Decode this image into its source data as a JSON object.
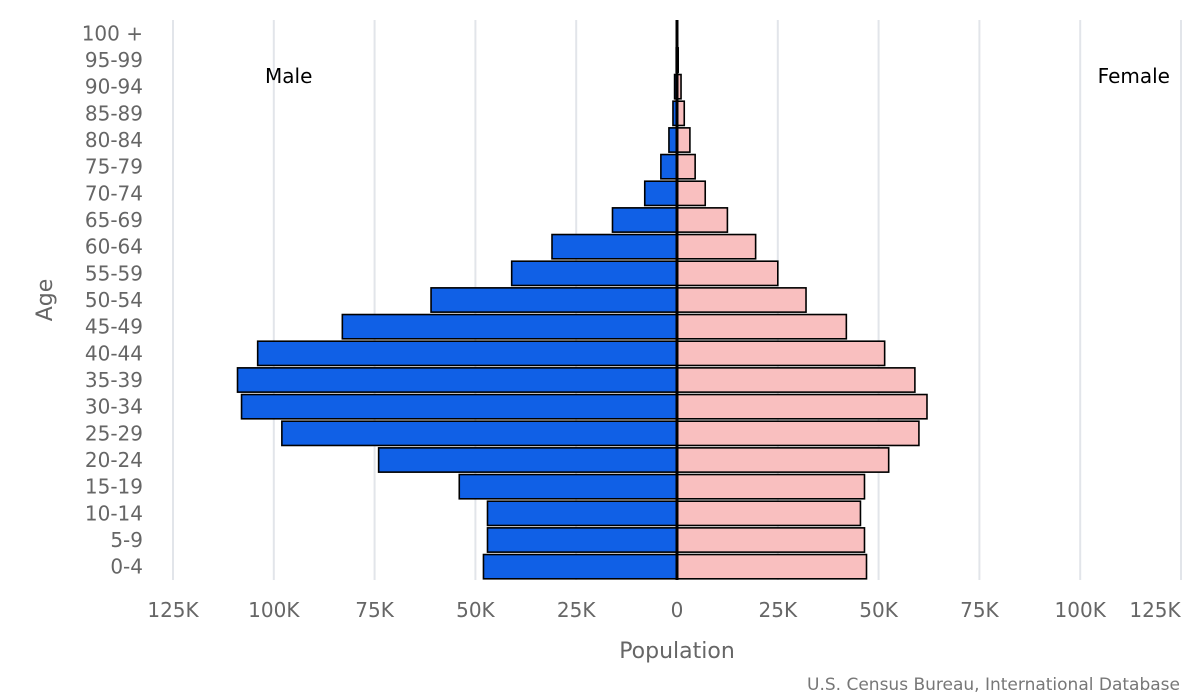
{
  "chart_data": {
    "type": "bar",
    "orientation": "horizontal",
    "subtype": "population-pyramid",
    "categories": [
      "0-4",
      "5-9",
      "10-14",
      "15-19",
      "20-24",
      "25-29",
      "30-34",
      "35-39",
      "40-44",
      "45-49",
      "50-54",
      "55-59",
      "60-64",
      "65-69",
      "70-74",
      "75-79",
      "80-84",
      "85-89",
      "90-94",
      "95-99",
      "100 +"
    ],
    "series": [
      {
        "name": "Male",
        "color": "#1060e6",
        "values": [
          48000,
          47000,
          47000,
          54000,
          74000,
          98000,
          108000,
          109000,
          104000,
          83000,
          61000,
          41000,
          31000,
          16000,
          8000,
          4000,
          2000,
          1000,
          600,
          200,
          100
        ]
      },
      {
        "name": "Female",
        "color": "#f9bfbf",
        "values": [
          47000,
          46500,
          45500,
          46500,
          52500,
          60000,
          62000,
          59000,
          51500,
          42000,
          32000,
          25000,
          19500,
          12500,
          7000,
          4500,
          3200,
          1800,
          1000,
          300,
          100
        ]
      }
    ],
    "xlabel": "Population",
    "ylabel": "Age",
    "xlim": [
      -125000,
      125000
    ],
    "xticks": [
      -125000,
      -100000,
      -75000,
      -50000,
      -25000,
      0,
      25000,
      50000,
      75000,
      100000,
      125000
    ],
    "xtick_labels": [
      "125K",
      "100K",
      "75K",
      "50K",
      "25K",
      "0",
      "25K",
      "50K",
      "75K",
      "100K",
      "125K"
    ],
    "grid": true,
    "legend": [
      {
        "label": "Male",
        "position": "top-left"
      },
      {
        "label": "Female",
        "position": "top-right"
      }
    ],
    "source": "U.S. Census Bureau, International Database"
  }
}
